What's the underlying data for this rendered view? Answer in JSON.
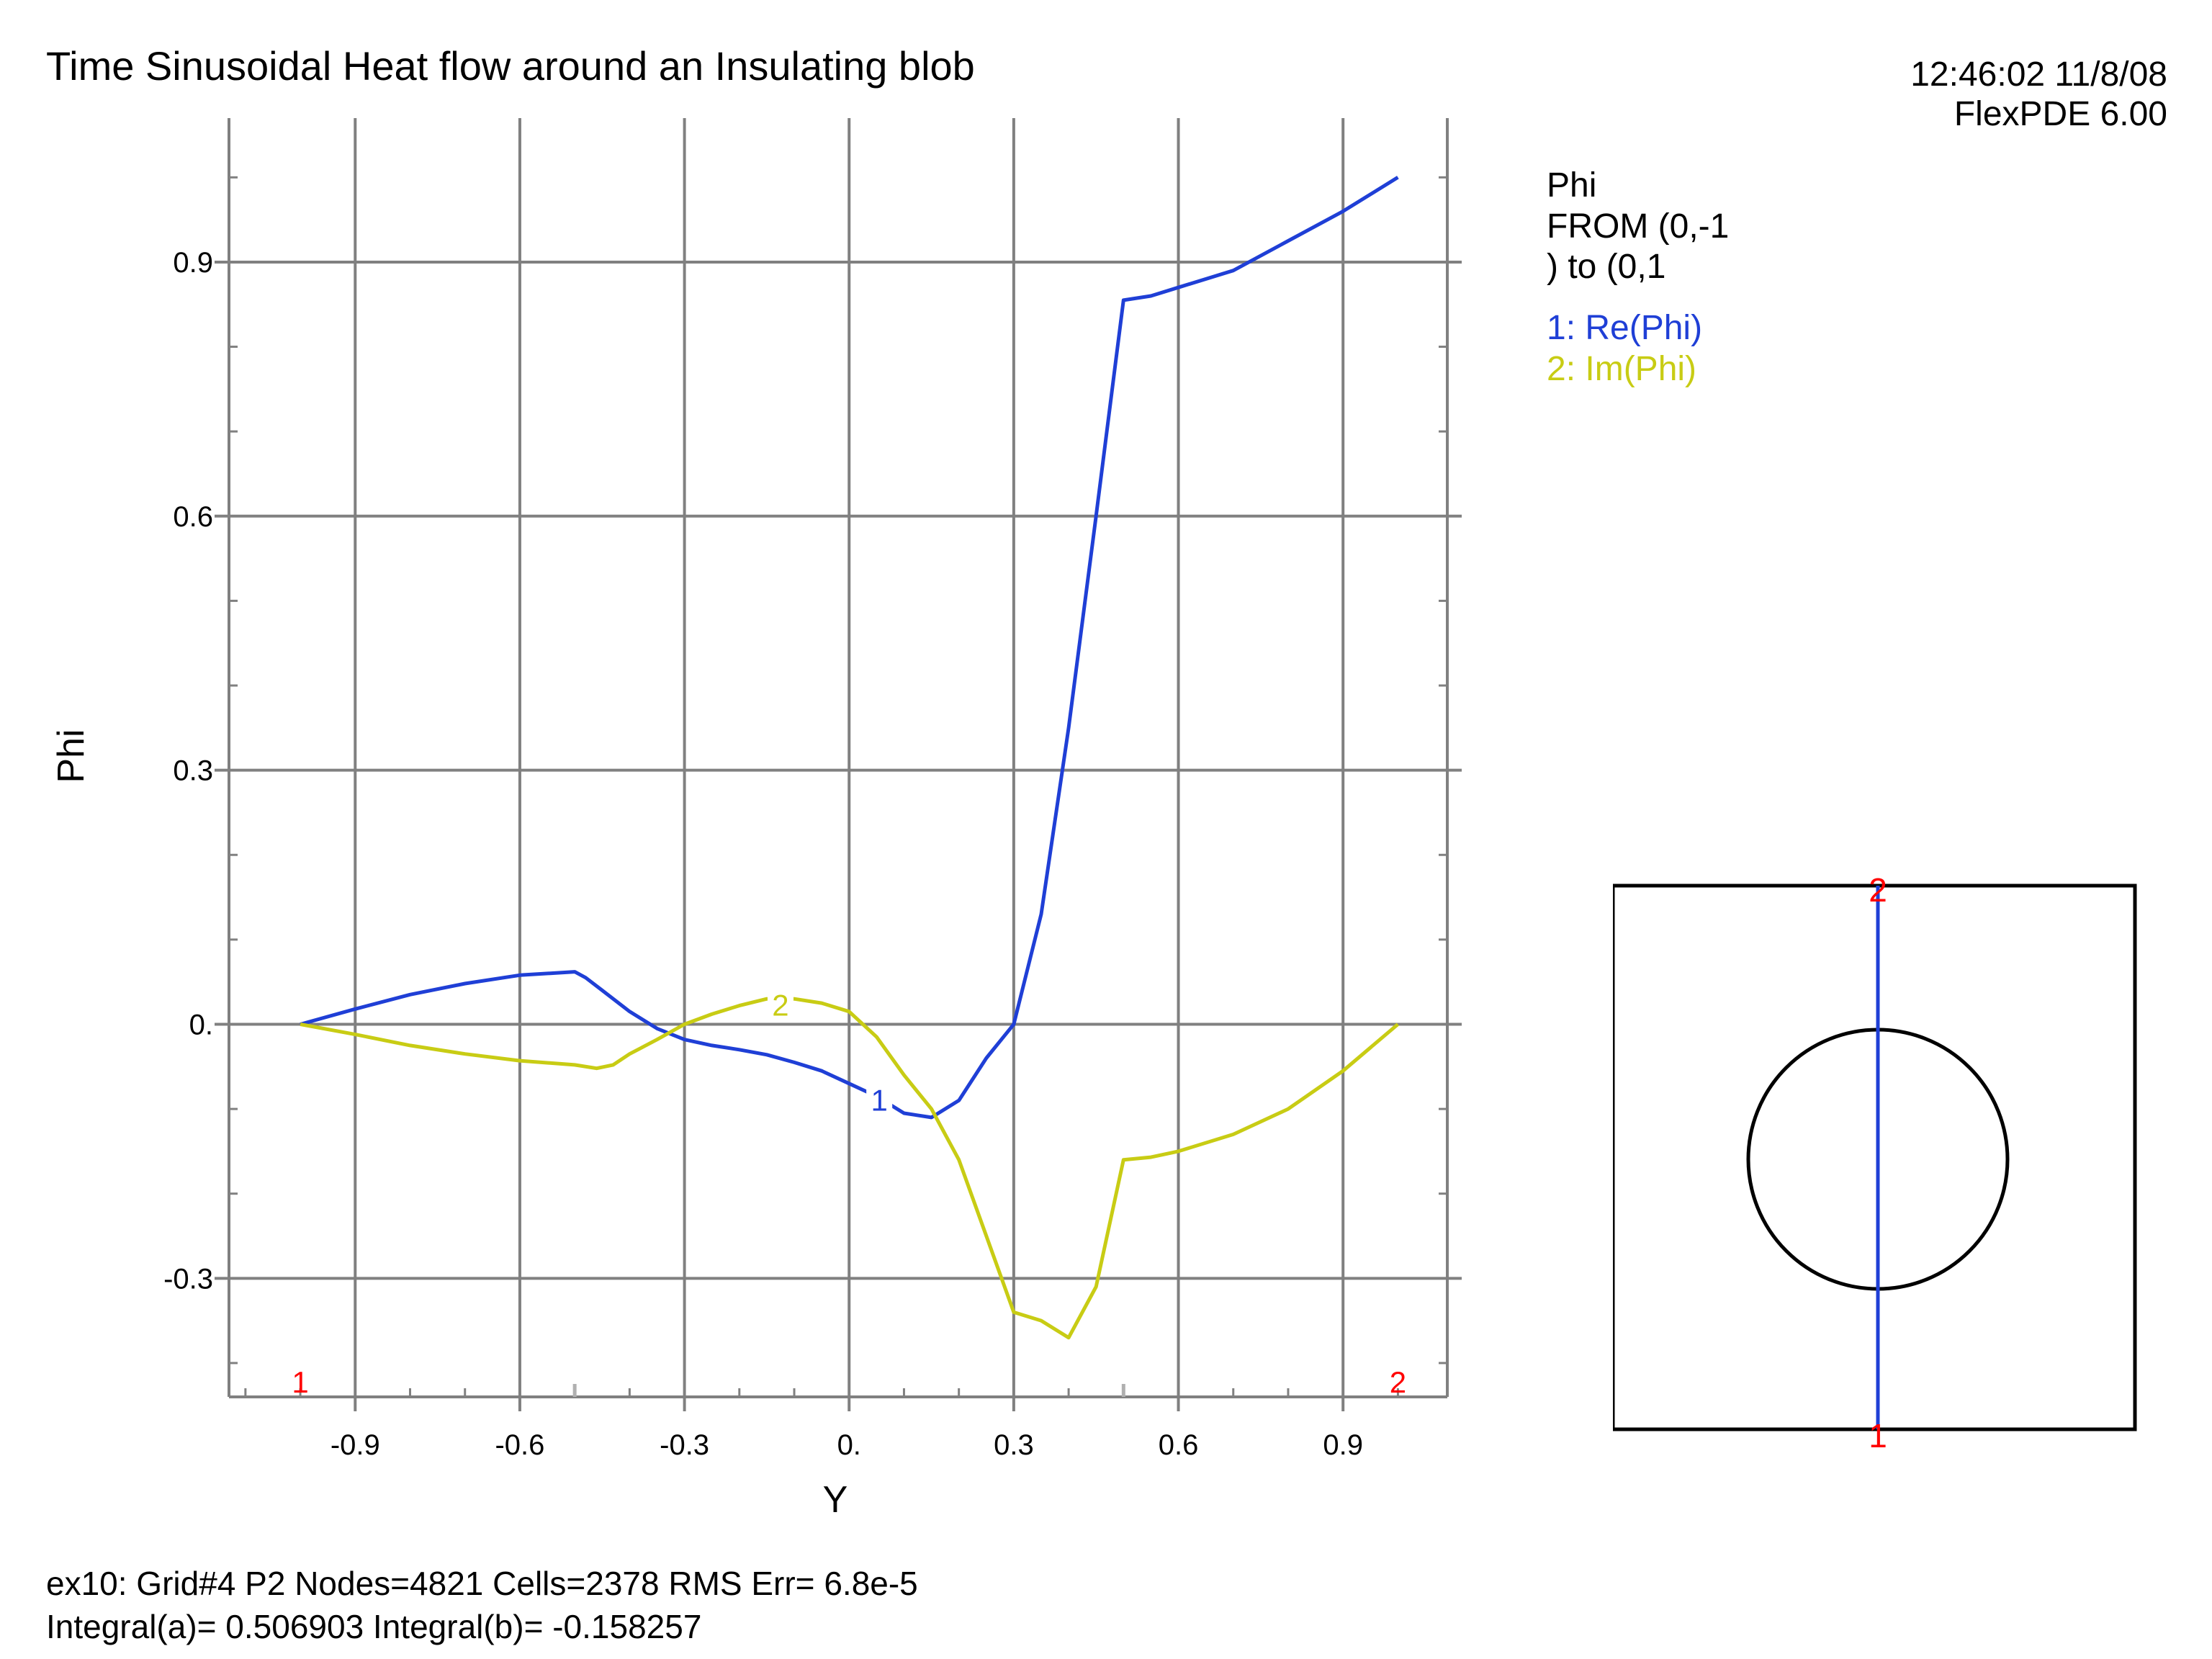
{
  "header": {
    "title": "Time Sinusoidal Heat flow around an Insulating blob",
    "timestamp": "12:46:02 11/8/08",
    "software": "FlexPDE 6.00"
  },
  "legend": {
    "heading": "Phi",
    "from_line1": "FROM (0,-1",
    "from_line2": ") to (0,1",
    "entries": [
      "1: Re(Phi)",
      "2: Im(Phi)"
    ]
  },
  "footer": {
    "line1": "ex10:  Grid#4  P2  Nodes=4821 Cells=2378 RMS Err= 6.8e-5",
    "line2": "Integral(a)=  0.506903 Integral(b)= -0.158257"
  },
  "colors": {
    "series1": "#1f3fd6",
    "series2": "#c8cc14",
    "grid": "#808080",
    "marker": "#ff0000"
  },
  "chart_data": {
    "type": "line",
    "xlabel": "Y",
    "ylabel": "Phi",
    "xlim": [
      -1.13,
      1.09
    ],
    "ylim": [
      -0.44,
      1.07
    ],
    "x_ticks": [
      -0.9,
      -0.6,
      -0.3,
      0.0,
      0.3,
      0.6,
      0.9
    ],
    "x_tick_labels": [
      "-0.9",
      "-0.6",
      "-0.3",
      "0.",
      "0.3",
      "0.6",
      "0.9"
    ],
    "y_ticks": [
      -0.3,
      0.0,
      0.3,
      0.6,
      0.9
    ],
    "y_tick_labels": [
      "-0.3",
      "0.",
      "0.3",
      "0.6",
      "0.9"
    ],
    "grid": true,
    "endpoint_labels": [
      "1",
      "2"
    ],
    "series": [
      {
        "name": "Re(Phi)",
        "curve_label": "1",
        "label_at": [
          0.055,
          -0.09
        ],
        "x": [
          -1.0,
          -0.9,
          -0.8,
          -0.7,
          -0.6,
          -0.5,
          -0.48,
          -0.45,
          -0.4,
          -0.35,
          -0.3,
          -0.25,
          -0.2,
          -0.15,
          -0.1,
          -0.05,
          0.0,
          0.05,
          0.1,
          0.15,
          0.2,
          0.25,
          0.3,
          0.35,
          0.4,
          0.45,
          0.5,
          0.55,
          0.6,
          0.7,
          0.8,
          0.9,
          1.0
        ],
        "y": [
          0.0,
          0.018,
          0.035,
          0.048,
          0.058,
          0.062,
          0.055,
          0.04,
          0.015,
          -0.005,
          -0.018,
          -0.025,
          -0.03,
          -0.036,
          -0.045,
          -0.055,
          -0.07,
          -0.085,
          -0.105,
          -0.11,
          -0.09,
          -0.04,
          0.0,
          0.13,
          0.35,
          0.6,
          0.855,
          0.86,
          0.87,
          0.89,
          0.925,
          0.96,
          1.0
        ]
      },
      {
        "name": "Im(Phi)",
        "curve_label": "2",
        "label_at": [
          -0.125,
          0.022
        ],
        "x": [
          -1.0,
          -0.9,
          -0.8,
          -0.7,
          -0.6,
          -0.5,
          -0.46,
          -0.43,
          -0.4,
          -0.35,
          -0.3,
          -0.25,
          -0.2,
          -0.15,
          -0.1,
          -0.05,
          0.0,
          0.05,
          0.1,
          0.15,
          0.2,
          0.25,
          0.3,
          0.35,
          0.4,
          0.45,
          0.5,
          0.55,
          0.6,
          0.7,
          0.8,
          0.9,
          1.0
        ],
        "y": [
          0.0,
          -0.012,
          -0.025,
          -0.035,
          -0.043,
          -0.048,
          -0.052,
          -0.048,
          -0.035,
          -0.018,
          0.0,
          0.012,
          0.022,
          0.03,
          0.03,
          0.025,
          0.015,
          -0.015,
          -0.06,
          -0.1,
          -0.16,
          -0.25,
          -0.34,
          -0.35,
          -0.37,
          -0.31,
          -0.16,
          -0.157,
          -0.15,
          -0.13,
          -0.1,
          -0.055,
          0.0
        ]
      }
    ]
  },
  "inset": {
    "start_label": "1",
    "end_label": "2"
  }
}
